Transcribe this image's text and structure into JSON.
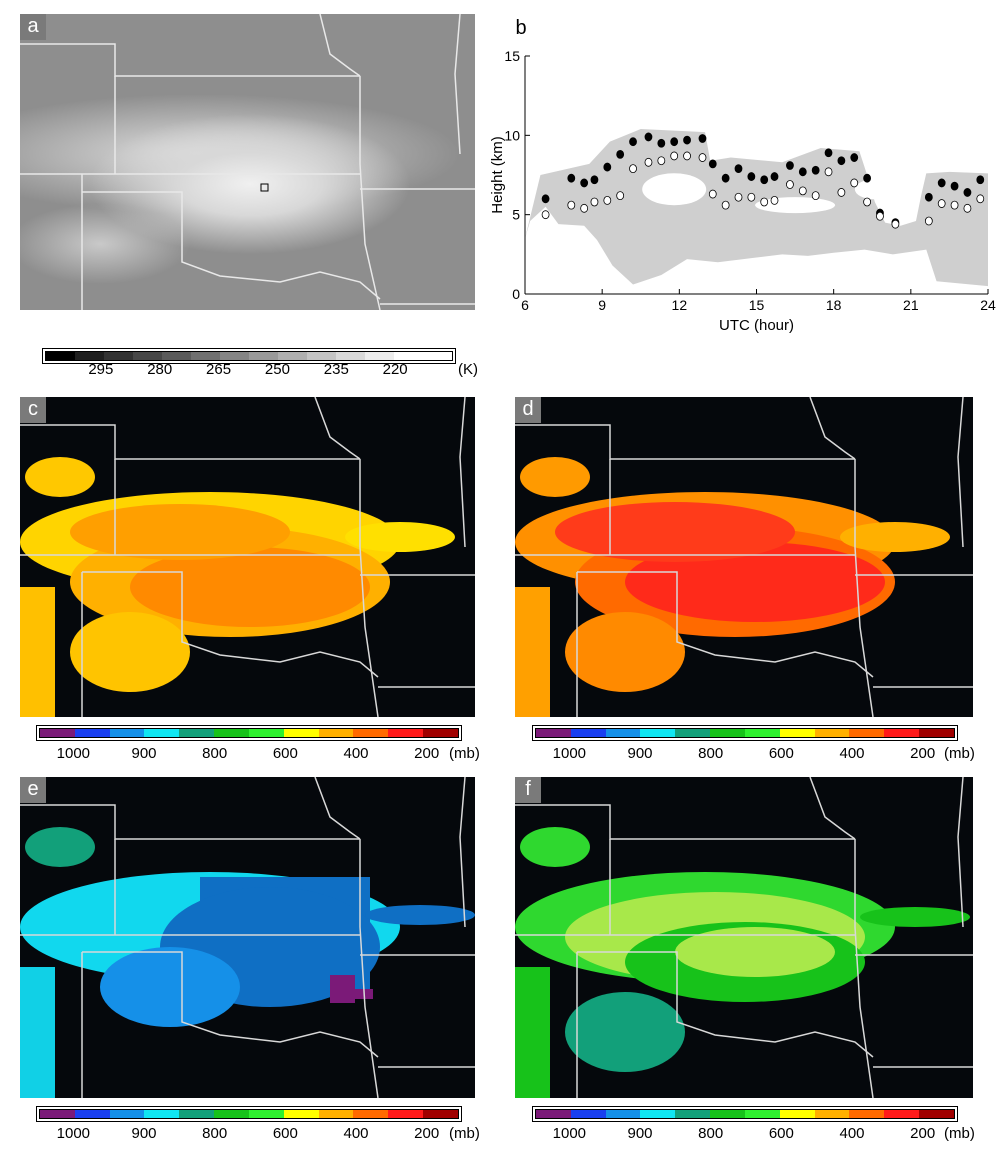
{
  "panels": {
    "a": {
      "letter": "a"
    },
    "b": {
      "letter": "b"
    },
    "c": {
      "letter": "c"
    },
    "d": {
      "letter": "d"
    },
    "e": {
      "letter": "e"
    },
    "f": {
      "letter": "f"
    }
  },
  "temp_colorbar": {
    "ticks": [
      "295",
      "280",
      "265",
      "250",
      "235",
      "220"
    ],
    "unit": "(K)",
    "colors": [
      "#000000",
      "#1e1e1e",
      "#323232",
      "#474747",
      "#5b5b5b",
      "#707070",
      "#858585",
      "#9a9a9a",
      "#afafaf",
      "#c4c4c4",
      "#d9d9d9",
      "#ededed",
      "#ffffff",
      "#ffffff"
    ]
  },
  "pressure_colorbar": {
    "ticks": [
      "1000",
      "900",
      "800",
      "600",
      "400",
      "200"
    ],
    "unit": "(mb)",
    "colors": [
      "#7b1a78",
      "#1a3ff0",
      "#1590e8",
      "#11e6f2",
      "#12a07a",
      "#17c21a",
      "#2ff02f",
      "#ffff00",
      "#ffb000",
      "#ff6a00",
      "#ff1a1a",
      "#a00000"
    ]
  },
  "chart_data": {
    "type": "scatter",
    "xlabel": "UTC (hour)",
    "ylabel": "Height (km)",
    "xlim": [
      6,
      24
    ],
    "ylim": [
      0,
      15
    ],
    "xticks": [
      "6",
      "9",
      "12",
      "15",
      "18",
      "21",
      "24"
    ],
    "yticks": [
      "0",
      "5",
      "10",
      "15"
    ],
    "series": [
      {
        "marker": "filled",
        "x": [
          6.8,
          7.8,
          8.3,
          8.7,
          9.2,
          9.7,
          10.2,
          10.8,
          11.3,
          11.8,
          12.3,
          12.9,
          13.3,
          13.8,
          14.3,
          14.8,
          15.3,
          15.7,
          16.3,
          16.8,
          17.3,
          17.8,
          18.3,
          18.8,
          19.3,
          19.8,
          20.4,
          21.7,
          22.2,
          22.7,
          23.2,
          23.7
        ],
        "y": [
          6.0,
          7.3,
          7.0,
          7.2,
          8.0,
          8.8,
          9.6,
          9.9,
          9.5,
          9.6,
          9.7,
          9.8,
          8.2,
          7.3,
          7.9,
          7.4,
          7.2,
          7.4,
          8.1,
          7.7,
          7.8,
          8.9,
          8.4,
          8.6,
          7.3,
          5.1,
          4.5,
          6.1,
          7.0,
          6.8,
          6.4,
          7.2
        ]
      },
      {
        "marker": "open",
        "x": [
          6.8,
          7.8,
          8.3,
          8.7,
          9.2,
          9.7,
          10.2,
          10.8,
          11.3,
          11.8,
          12.3,
          12.9,
          13.3,
          13.8,
          14.3,
          14.8,
          15.3,
          15.7,
          16.3,
          16.8,
          17.3,
          17.8,
          18.3,
          18.8,
          19.3,
          19.8,
          20.4,
          21.7,
          22.2,
          22.7,
          23.2,
          23.7
        ],
        "y": [
          5.0,
          5.6,
          5.4,
          5.8,
          5.9,
          6.2,
          7.9,
          8.3,
          8.4,
          8.7,
          8.7,
          8.6,
          6.3,
          5.6,
          6.1,
          6.1,
          5.8,
          5.9,
          6.9,
          6.5,
          6.2,
          7.7,
          6.4,
          7.0,
          5.8,
          4.9,
          4.4,
          4.6,
          5.7,
          5.6,
          5.4,
          6.0
        ]
      }
    ],
    "cloud_shading_color": "#cfcfcf"
  }
}
